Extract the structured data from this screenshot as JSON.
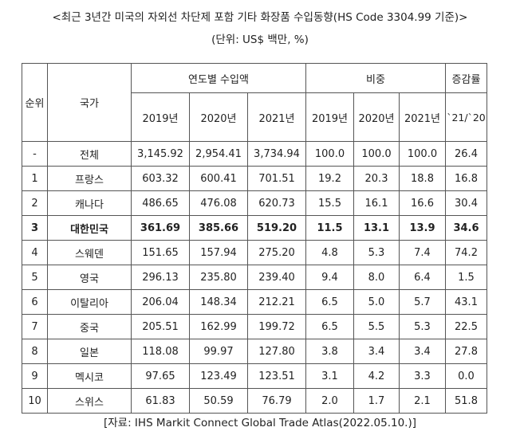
{
  "title": "<최근 3년간 미국의 자외선 차단제 포함 기타 화장품 수입동향(HS Code 3304.99 기준)>",
  "unit": "(단위: US$ 백만, %)",
  "table": {
    "headers": {
      "rank": "순위",
      "country": "국가",
      "imports_group": "연도별 수입액",
      "share_group": "비중",
      "change_group": "증감률",
      "change_sub": "`21/`20",
      "years": [
        "2019년",
        "2020년",
        "2021년"
      ]
    },
    "rows": [
      {
        "rank": "-",
        "country": "전체",
        "imp2019": "3,145.92",
        "imp2020": "2,954.41",
        "imp2021": "3,734.94",
        "sh2019": "100.0",
        "sh2020": "100.0",
        "sh2021": "100.0",
        "change": "26.4"
      },
      {
        "rank": "1",
        "country": "프랑스",
        "imp2019": "603.32",
        "imp2020": "600.41",
        "imp2021": "701.51",
        "sh2019": "19.2",
        "sh2020": "20.3",
        "sh2021": "18.8",
        "change": "16.8"
      },
      {
        "rank": "2",
        "country": "캐나다",
        "imp2019": "486.65",
        "imp2020": "476.08",
        "imp2021": "620.73",
        "sh2019": "15.5",
        "sh2020": "16.1",
        "sh2021": "16.6",
        "change": "30.4"
      },
      {
        "rank": "3",
        "country": "대한민국",
        "imp2019": "361.69",
        "imp2020": "385.66",
        "imp2021": "519.20",
        "sh2019": "11.5",
        "sh2020": "13.1",
        "sh2021": "13.9",
        "change": "34.6"
      },
      {
        "rank": "4",
        "country": "스웨덴",
        "imp2019": "151.65",
        "imp2020": "157.94",
        "imp2021": "275.20",
        "sh2019": "4.8",
        "sh2020": "5.3",
        "sh2021": "7.4",
        "change": "74.2"
      },
      {
        "rank": "5",
        "country": "영국",
        "imp2019": "296.13",
        "imp2020": "235.80",
        "imp2021": "239.40",
        "sh2019": "9.4",
        "sh2020": "8.0",
        "sh2021": "6.4",
        "change": "1.5"
      },
      {
        "rank": "6",
        "country": "이탈리아",
        "imp2019": "206.04",
        "imp2020": "148.34",
        "imp2021": "212.21",
        "sh2019": "6.5",
        "sh2020": "5.0",
        "sh2021": "5.7",
        "change": "43.1"
      },
      {
        "rank": "7",
        "country": "중국",
        "imp2019": "205.51",
        "imp2020": "162.99",
        "imp2021": "199.72",
        "sh2019": "6.5",
        "sh2020": "5.5",
        "sh2021": "5.3",
        "change": "22.5"
      },
      {
        "rank": "8",
        "country": "일본",
        "imp2019": "118.08",
        "imp2020": "99.97",
        "imp2021": "127.80",
        "sh2019": "3.8",
        "sh2020": "3.4",
        "sh2021": "3.4",
        "change": "27.8"
      },
      {
        "rank": "9",
        "country": "멕시코",
        "imp2019": "97.65",
        "imp2020": "123.49",
        "imp2021": "123.51",
        "sh2019": "3.1",
        "sh2020": "4.2",
        "sh2021": "3.3",
        "change": "0.0"
      },
      {
        "rank": "10",
        "country": "스위스",
        "imp2019": "61.83",
        "imp2020": "50.59",
        "imp2021": "76.79",
        "sh2019": "2.0",
        "sh2020": "1.7",
        "sh2021": "2.1",
        "change": "51.8"
      }
    ],
    "highlight_rank": "3"
  },
  "source": "[자료: IHS Markit Connect Global Trade Atlas(2022.05.10.)]"
}
